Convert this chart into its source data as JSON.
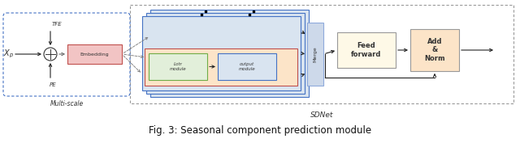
{
  "title": "Fig. 3: Seasonal component prediction module",
  "sdnet_label": "SDNet",
  "multiscale_label": "Multi-scale",
  "tfe_label": "TFE",
  "pe_label": "PE",
  "xp_label": "$X_p$",
  "embedding_label": "Embedding",
  "lotr_label": "Lotr\nmodule",
  "output_label": "output\nmodule",
  "merge_label": "Merge",
  "feedforward_label": "Feed\nforward",
  "addnorm_label": "Add\n&\nNorm",
  "bg_color": "#ffffff",
  "ms_border_color": "#4472c4",
  "embedding_fill": "#f2c4c4",
  "embedding_border": "#c0504d",
  "stack_fill": "#d9e4f0",
  "stack_border": "#4472c4",
  "inner_fill": "#fce4c8",
  "inner_border": "#c0504d",
  "lotr_fill": "#e2efda",
  "lotr_border": "#70ad47",
  "out_fill": "#d9e4f0",
  "out_border": "#4472c4",
  "merge_fill": "#dce6f1",
  "merge_border": "#8faadc",
  "ff_fill": "#fef9e7",
  "ff_border": "#999999",
  "an_fill": "#fce4c8",
  "an_border": "#999999",
  "sdnet_border": "#999999",
  "arrow_color": "#222222"
}
